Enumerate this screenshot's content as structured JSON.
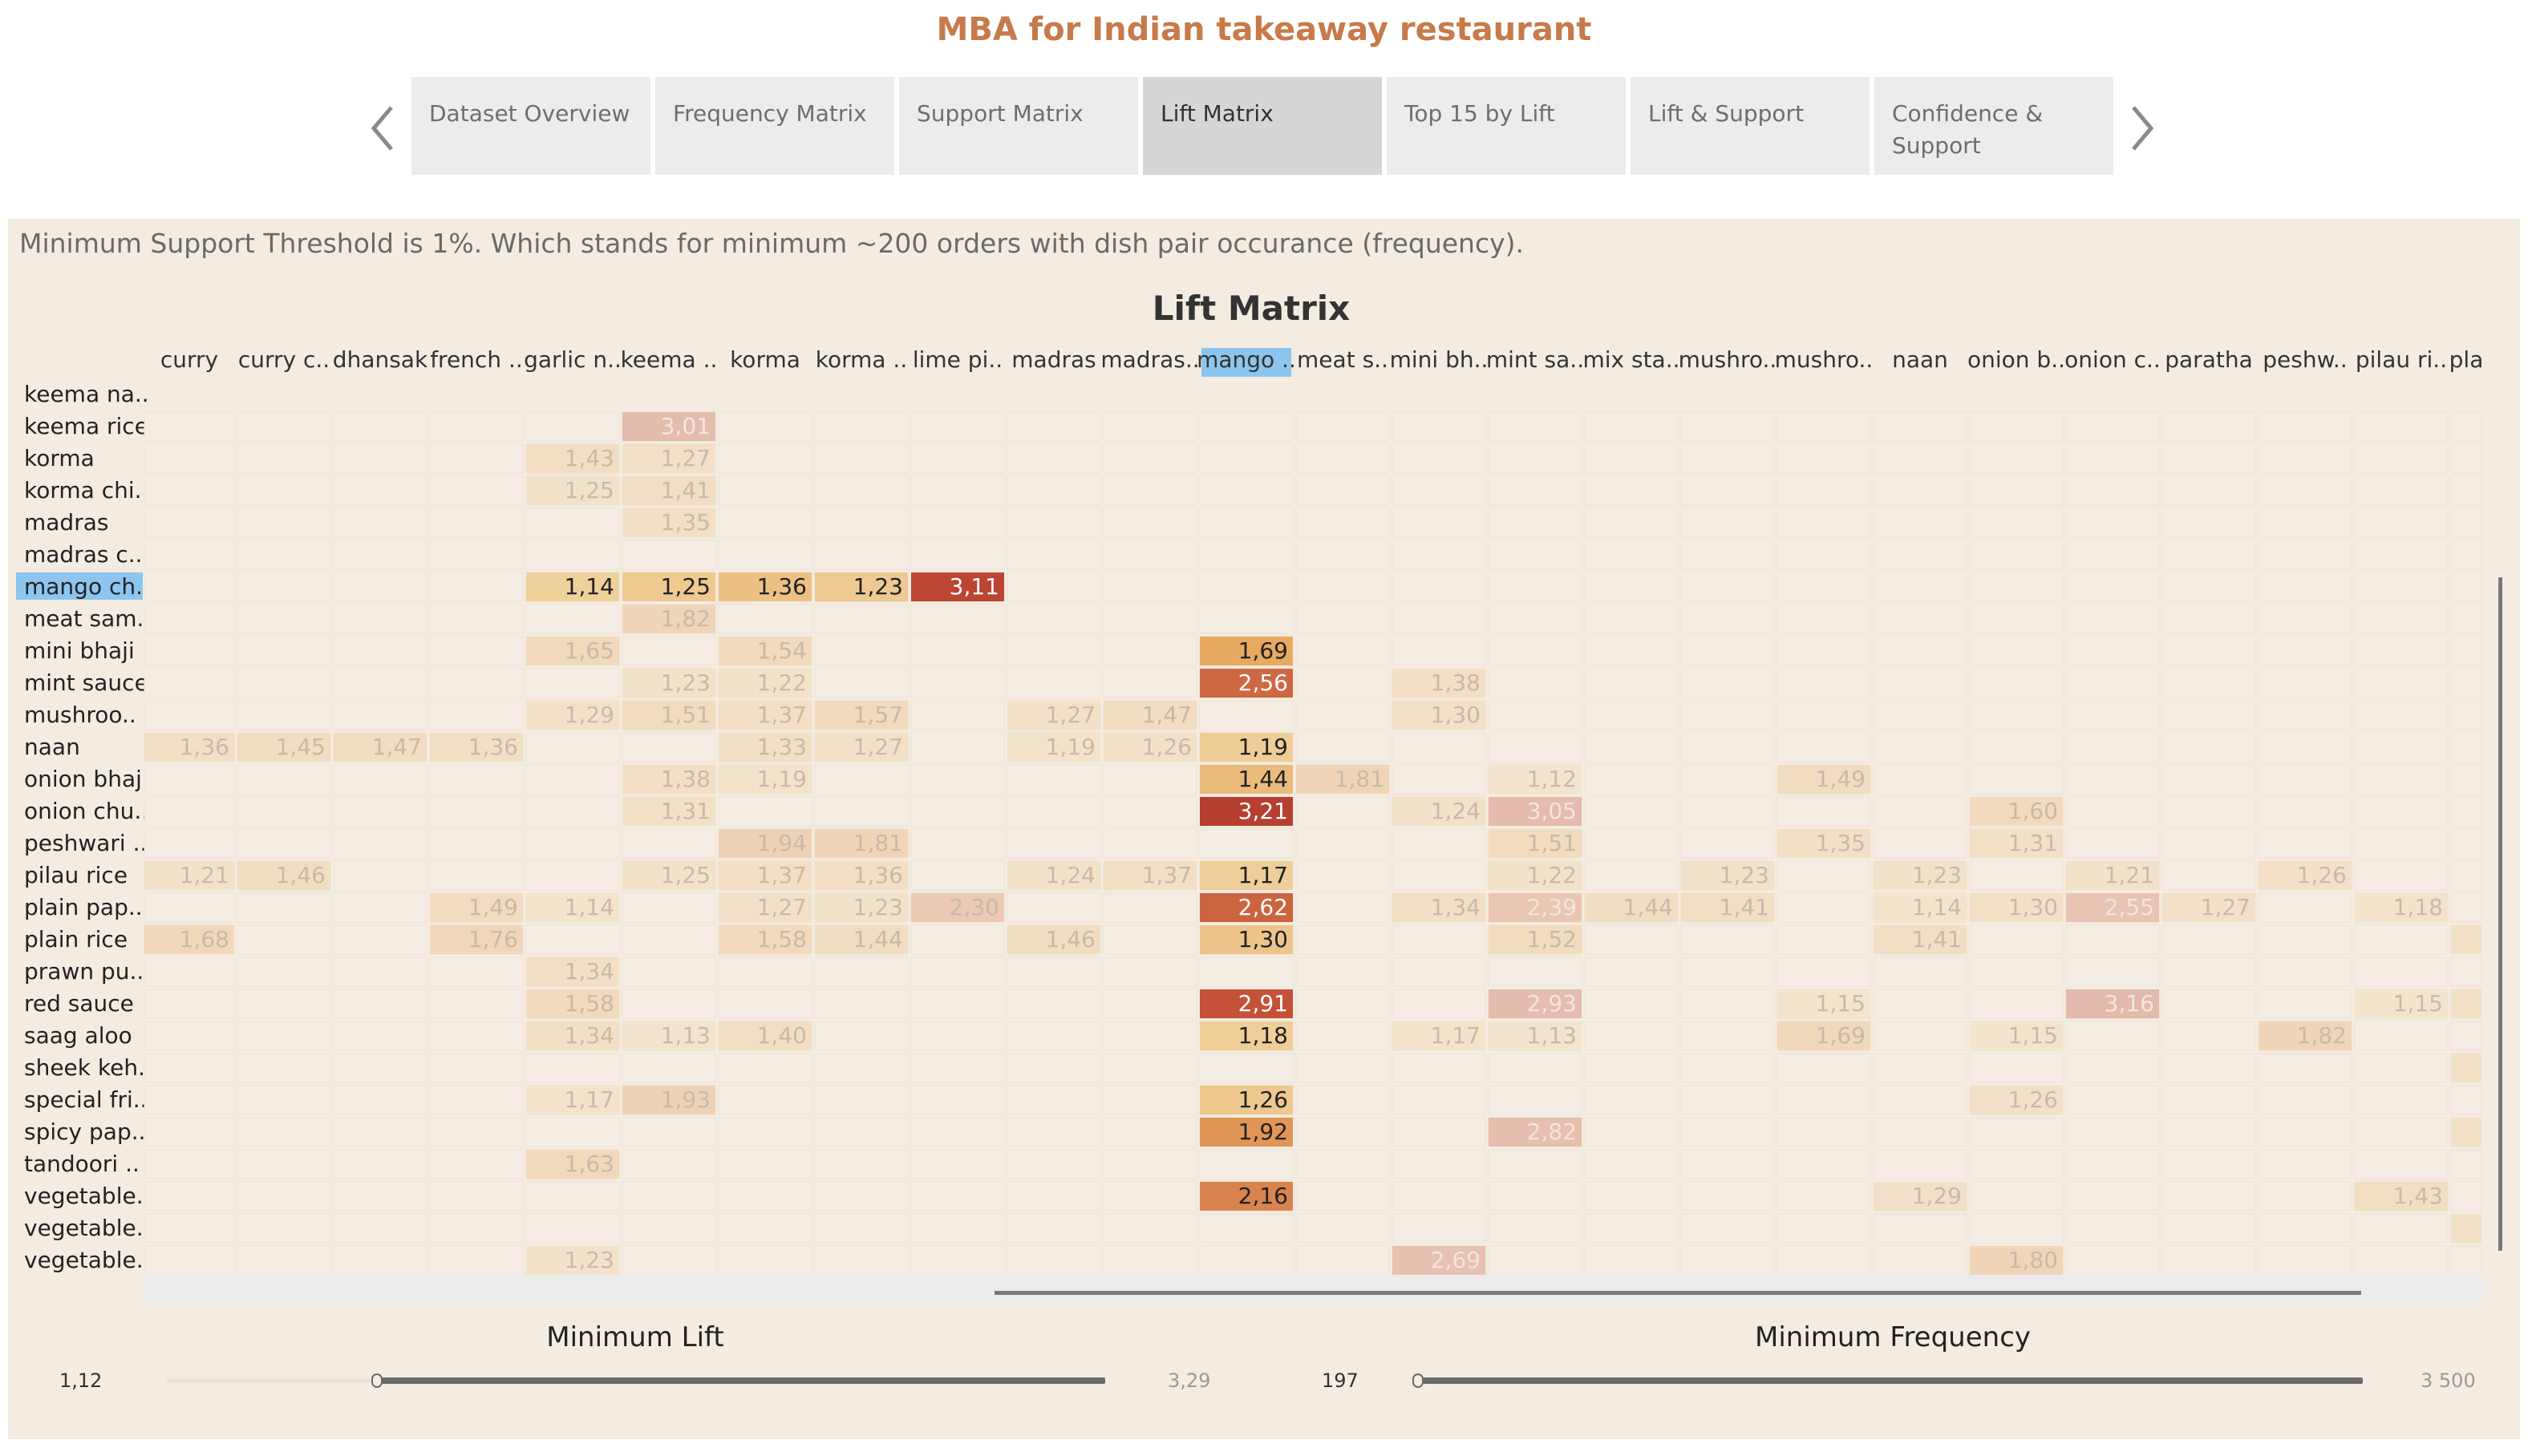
{
  "title": "MBA for Indian takeaway restaurant",
  "tabs": [
    "Dataset Overview",
    "Frequency Matrix",
    "Support Matrix",
    "Lift Matrix",
    "Top 15 by Lift",
    "Lift & Support",
    "Confidence & Support"
  ],
  "active_tab": 3,
  "note": "Minimum Support Threshold is 1%. Which stands for minimum ~200 orders with dish pair occurance (frequency).",
  "chart_data": {
    "type": "heatmap",
    "title": "Lift Matrix",
    "columns": [
      "curry",
      "curry c..",
      "dhansak",
      "french ..",
      "garlic n..",
      "keema ..",
      "korma",
      "korma ..",
      "lime pi..",
      "madras",
      "madras..",
      "mango ..",
      "meat s..",
      "mini bh..",
      "mint sa..",
      "mix sta..",
      "mushro..",
      "mushro..",
      "naan",
      "onion b..",
      "onion c..",
      "paratha",
      "peshw..",
      "pilau ri..",
      "pla"
    ],
    "rows": [
      "keema na..",
      "keema rice",
      "korma",
      "korma chi..",
      "madras",
      "madras c..",
      "mango ch..",
      "meat sam..",
      "mini bhaji",
      "mint sauce",
      "mushroo..",
      "naan",
      "onion bhaji",
      "onion chu..",
      "peshwari ..",
      "pilau rice",
      "plain pap..",
      "plain rice",
      "prawn pu..",
      "red sauce",
      "saag aloo",
      "sheek keh..",
      "special fri..",
      "spicy pap..",
      "tandoori ..",
      "vegetable..",
      "vegetable..",
      "vegetable.."
    ],
    "highlight_row": 6,
    "highlight_col": 11,
    "value_range": [
      1.12,
      3.29
    ],
    "cells": [
      [
        1,
        5,
        "3,01"
      ],
      [
        2,
        4,
        "1,43"
      ],
      [
        2,
        5,
        "1,27"
      ],
      [
        3,
        4,
        "1,25"
      ],
      [
        3,
        5,
        "1,41"
      ],
      [
        4,
        5,
        "1,35"
      ],
      [
        6,
        4,
        "1,14"
      ],
      [
        6,
        5,
        "1,25"
      ],
      [
        6,
        6,
        "1,36"
      ],
      [
        6,
        7,
        "1,23"
      ],
      [
        6,
        8,
        "3,11"
      ],
      [
        7,
        5,
        "1,82"
      ],
      [
        8,
        4,
        "1,65"
      ],
      [
        8,
        6,
        "1,54"
      ],
      [
        8,
        11,
        "1,69"
      ],
      [
        9,
        5,
        "1,23"
      ],
      [
        9,
        6,
        "1,22"
      ],
      [
        9,
        11,
        "2,56"
      ],
      [
        9,
        13,
        "1,38"
      ],
      [
        10,
        4,
        "1,29"
      ],
      [
        10,
        5,
        "1,51"
      ],
      [
        10,
        6,
        "1,37"
      ],
      [
        10,
        7,
        "1,57"
      ],
      [
        10,
        9,
        "1,27"
      ],
      [
        10,
        10,
        "1,47"
      ],
      [
        10,
        13,
        "1,30"
      ],
      [
        11,
        0,
        "1,36"
      ],
      [
        11,
        1,
        "1,45"
      ],
      [
        11,
        2,
        "1,47"
      ],
      [
        11,
        3,
        "1,36"
      ],
      [
        11,
        6,
        "1,33"
      ],
      [
        11,
        7,
        "1,27"
      ],
      [
        11,
        9,
        "1,19"
      ],
      [
        11,
        10,
        "1,26"
      ],
      [
        11,
        11,
        "1,19"
      ],
      [
        12,
        5,
        "1,38"
      ],
      [
        12,
        6,
        "1,19"
      ],
      [
        12,
        11,
        "1,44"
      ],
      [
        12,
        12,
        "1,81"
      ],
      [
        12,
        14,
        "1,12"
      ],
      [
        12,
        17,
        "1,49"
      ],
      [
        13,
        5,
        "1,31"
      ],
      [
        13,
        11,
        "3,21"
      ],
      [
        13,
        13,
        "1,24"
      ],
      [
        13,
        14,
        "3,05"
      ],
      [
        13,
        19,
        "1,60"
      ],
      [
        14,
        6,
        "1,94"
      ],
      [
        14,
        7,
        "1,81"
      ],
      [
        14,
        14,
        "1,51"
      ],
      [
        14,
        17,
        "1,35"
      ],
      [
        14,
        19,
        "1,31"
      ],
      [
        15,
        0,
        "1,21"
      ],
      [
        15,
        1,
        "1,46"
      ],
      [
        15,
        5,
        "1,25"
      ],
      [
        15,
        6,
        "1,37"
      ],
      [
        15,
        7,
        "1,36"
      ],
      [
        15,
        9,
        "1,24"
      ],
      [
        15,
        10,
        "1,37"
      ],
      [
        15,
        11,
        "1,17"
      ],
      [
        15,
        14,
        "1,22"
      ],
      [
        15,
        16,
        "1,23"
      ],
      [
        15,
        18,
        "1,23"
      ],
      [
        15,
        20,
        "1,21"
      ],
      [
        15,
        22,
        "1,26"
      ],
      [
        16,
        3,
        "1,49"
      ],
      [
        16,
        4,
        "1,14"
      ],
      [
        16,
        6,
        "1,27"
      ],
      [
        16,
        7,
        "1,23"
      ],
      [
        16,
        8,
        "2,30"
      ],
      [
        16,
        11,
        "2,62"
      ],
      [
        16,
        13,
        "1,34"
      ],
      [
        16,
        14,
        "2,39"
      ],
      [
        16,
        15,
        "1,44"
      ],
      [
        16,
        16,
        "1,41"
      ],
      [
        16,
        18,
        "1,14"
      ],
      [
        16,
        19,
        "1,30"
      ],
      [
        16,
        20,
        "2,55"
      ],
      [
        16,
        21,
        "1,27"
      ],
      [
        16,
        23,
        "1,18"
      ],
      [
        17,
        0,
        "1,68"
      ],
      [
        17,
        3,
        "1,76"
      ],
      [
        17,
        6,
        "1,58"
      ],
      [
        17,
        7,
        "1,44"
      ],
      [
        17,
        9,
        "1,46"
      ],
      [
        17,
        11,
        "1,30"
      ],
      [
        17,
        14,
        "1,52"
      ],
      [
        17,
        18,
        "1,41"
      ],
      [
        17,
        24,
        ""
      ],
      [
        18,
        4,
        "1,34"
      ],
      [
        19,
        4,
        "1,58"
      ],
      [
        19,
        11,
        "2,91"
      ],
      [
        19,
        14,
        "2,93"
      ],
      [
        19,
        17,
        "1,15"
      ],
      [
        19,
        20,
        "3,16"
      ],
      [
        19,
        23,
        "1,15"
      ],
      [
        19,
        24,
        ""
      ],
      [
        20,
        4,
        "1,34"
      ],
      [
        20,
        5,
        "1,13"
      ],
      [
        20,
        6,
        "1,40"
      ],
      [
        20,
        11,
        "1,18"
      ],
      [
        20,
        13,
        "1,17"
      ],
      [
        20,
        14,
        "1,13"
      ],
      [
        20,
        17,
        "1,69"
      ],
      [
        20,
        19,
        "1,15"
      ],
      [
        20,
        22,
        "1,82"
      ],
      [
        21,
        24,
        ""
      ],
      [
        22,
        4,
        "1,17"
      ],
      [
        22,
        5,
        "1,93"
      ],
      [
        22,
        11,
        "1,26"
      ],
      [
        22,
        19,
        "1,26"
      ],
      [
        23,
        11,
        "1,92"
      ],
      [
        23,
        14,
        "2,82"
      ],
      [
        23,
        24,
        ""
      ],
      [
        24,
        4,
        "1,63"
      ],
      [
        25,
        11,
        "2,16"
      ],
      [
        25,
        18,
        "1,29"
      ],
      [
        25,
        23,
        "1,43"
      ],
      [
        26,
        24,
        ""
      ],
      [
        27,
        4,
        "1,23"
      ],
      [
        27,
        13,
        "2,69"
      ],
      [
        27,
        19,
        "1,80"
      ]
    ]
  },
  "sliders": {
    "lift": {
      "title": "Minimum Lift",
      "min_label": "1,12",
      "max_label": "3,29",
      "value": 1.12,
      "range": [
        1.12,
        3.29
      ]
    },
    "frequency": {
      "title": "Minimum Frequency",
      "min_label": "197",
      "max_label": "3 500",
      "value": 197,
      "range": [
        197,
        3500
      ]
    }
  }
}
